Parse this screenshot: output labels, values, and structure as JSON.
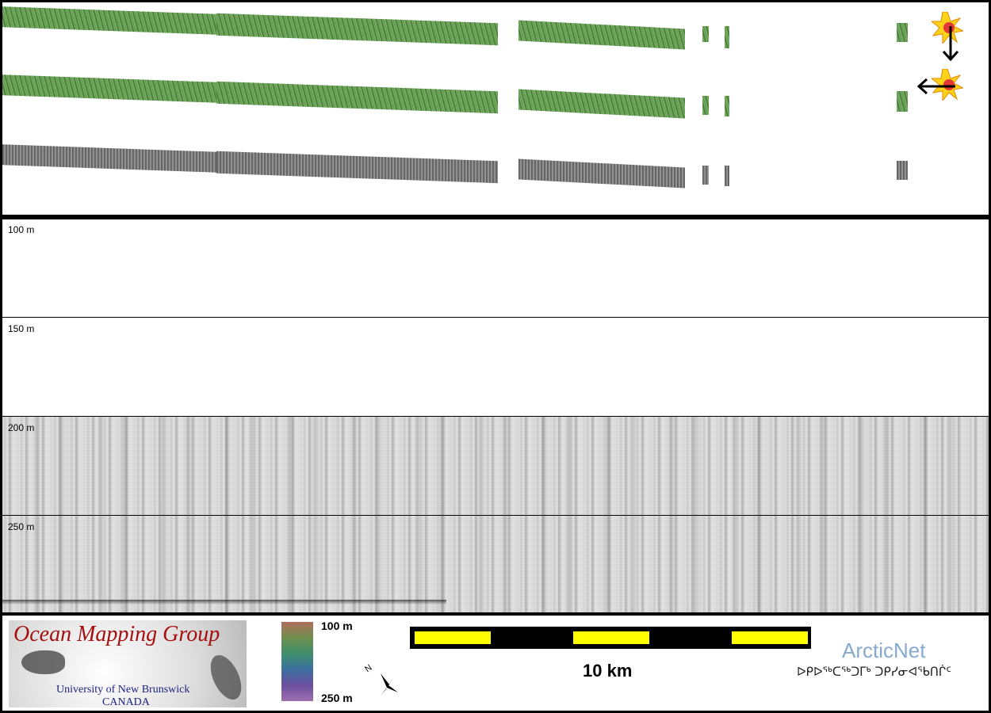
{
  "water_column": {
    "depth_labels": [
      "100 m",
      "150 m",
      "200 m",
      "250 m"
    ]
  },
  "legend": {
    "logo": {
      "title": "Ocean Mapping Group",
      "university": "University of New Brunswick",
      "country": "CANADA"
    },
    "colorbar": {
      "top_label": "100 m",
      "bottom_label": "250 m",
      "colors": [
        "#b06f5c",
        "#6f8f4f",
        "#3e8f6b",
        "#3c6f9f",
        "#6a4f9f",
        "#9f6faf"
      ]
    },
    "scale_label": "10 km",
    "partner_name": "ArcticNet",
    "partner_syllabics": "ᐅᑭᐅᖅᑕᖅᑐᒥᒃ ᑐᑭᓯᓂᐊᖃᑎᒌᑦ"
  },
  "icons": {
    "sun_top": "sun-icon",
    "sun_bottom": "sun-icon",
    "arrow_down": "arrow-down-icon",
    "arrow_left": "arrow-left-icon",
    "north_arrow": "north-arrow-icon"
  }
}
